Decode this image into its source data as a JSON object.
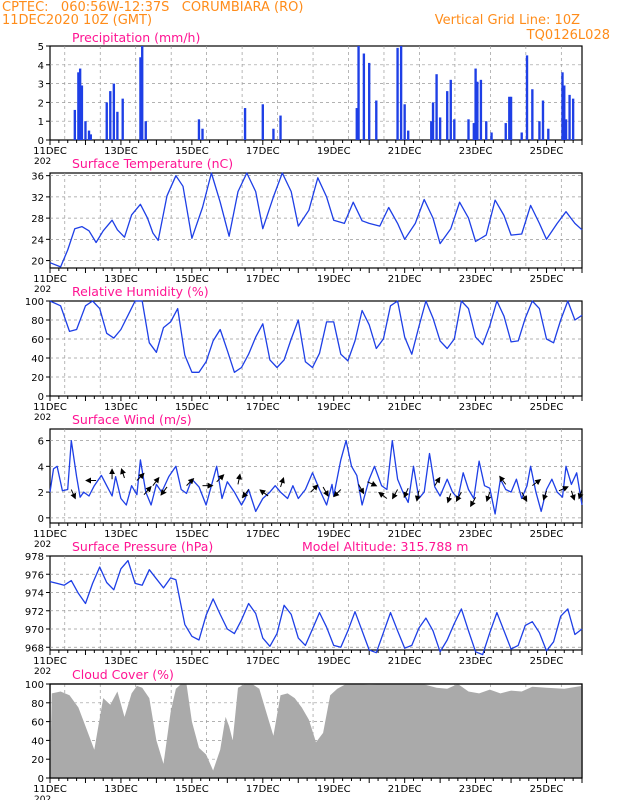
{
  "header": {
    "line1_left": "CPTEC:   060:56W-12:37S   CORUMBIARA (RO)",
    "line2_left": "11DEC2020 10Z (GMT)",
    "line1_right": "Vertical Grid Line: 10Z",
    "line2_right": "TQ0126L028"
  },
  "colors": {
    "header": "#ff8c1a",
    "panel_title": "#ff1493",
    "series": "#1e3fe6",
    "cloud": "#aaaaaa",
    "wind_arrow": "#000000",
    "grid": "#999999"
  },
  "x_axis": {
    "start_day": 11,
    "end_day": 26,
    "labels": [
      "11DEC",
      "13DEC",
      "15DEC",
      "17DEC",
      "19DEC",
      "21DEC",
      "23DEC",
      "25DEC"
    ],
    "label_days": [
      11,
      13,
      15,
      17,
      19,
      21,
      23,
      25
    ],
    "cut_label": "202"
  },
  "chart_data": [
    {
      "id": "precip",
      "type": "bar",
      "title": "Precipitation  (mm/h)",
      "ylim": [
        0,
        5
      ],
      "yticks": [
        0,
        1,
        2,
        3,
        4,
        5
      ],
      "x_unit": "day of December 2020",
      "x": [
        11.7,
        11.8,
        11.85,
        11.9,
        12.0,
        12.1,
        12.15,
        12.6,
        12.7,
        12.8,
        12.9,
        13.05,
        13.55,
        13.6,
        13.7,
        15.2,
        15.3,
        16.5,
        17.0,
        17.3,
        17.5,
        19.65,
        19.7,
        19.85,
        20.0,
        20.2,
        20.8,
        20.9,
        21.0,
        21.1,
        21.75,
        21.8,
        21.9,
        22.0,
        22.2,
        22.3,
        22.4,
        22.8,
        22.95,
        23.0,
        23.05,
        23.15,
        23.3,
        23.45,
        23.85,
        23.95,
        24.0,
        24.3,
        24.45,
        24.6,
        24.8,
        24.9,
        25.05,
        25.45,
        25.5,
        25.55,
        25.65,
        25.75
      ],
      "values": [
        1.6,
        3.6,
        3.8,
        2.9,
        1.0,
        0.5,
        0.3,
        2.0,
        2.6,
        3.0,
        1.5,
        2.2,
        4.4,
        5.0,
        1.0,
        1.1,
        0.6,
        1.7,
        1.9,
        0.6,
        1.3,
        1.7,
        5.0,
        4.6,
        4.1,
        2.1,
        4.9,
        5.0,
        1.9,
        0.5,
        1.0,
        2.0,
        3.5,
        1.2,
        2.6,
        3.2,
        1.1,
        1.1,
        0.9,
        3.8,
        3.1,
        3.2,
        1.0,
        0.4,
        0.9,
        2.3,
        2.3,
        0.4,
        4.5,
        2.7,
        1.0,
        2.1,
        0.6,
        3.6,
        2.9,
        1.1,
        2.4,
        2.2
      ]
    },
    {
      "id": "temp",
      "type": "line",
      "title": "Surface Temperature  (nC)",
      "ylim": [
        18.6,
        36.5
      ],
      "yticks": [
        20,
        24,
        28,
        32,
        36
      ],
      "x_unit": "day of December 2020",
      "x": [
        11.0,
        11.3,
        11.5,
        11.7,
        11.9,
        12.1,
        12.3,
        12.5,
        12.75,
        12.9,
        13.1,
        13.3,
        13.55,
        13.75,
        13.9,
        14.05,
        14.3,
        14.55,
        14.75,
        15.0,
        15.3,
        15.55,
        15.8,
        16.05,
        16.3,
        16.55,
        16.8,
        17.0,
        17.3,
        17.55,
        17.8,
        18.0,
        18.3,
        18.55,
        18.8,
        19.0,
        19.3,
        19.55,
        19.8,
        20.0,
        20.3,
        20.55,
        20.8,
        21.0,
        21.3,
        21.55,
        21.8,
        22.0,
        22.3,
        22.55,
        22.8,
        23.0,
        23.3,
        23.55,
        23.8,
        24.0,
        24.3,
        24.55,
        24.8,
        25.0,
        25.3,
        25.55,
        25.8,
        26.0
      ],
      "values": [
        19.6,
        18.8,
        22.0,
        26.0,
        26.4,
        25.6,
        23.4,
        25.6,
        27.6,
        25.8,
        24.4,
        28.6,
        30.6,
        28.0,
        25.2,
        23.8,
        32.2,
        36.0,
        34.0,
        24.2,
        30.0,
        36.5,
        31.0,
        24.6,
        33.0,
        36.5,
        33.0,
        26.0,
        32.0,
        36.5,
        33.0,
        26.5,
        29.5,
        35.6,
        32.0,
        27.6,
        27.0,
        31.0,
        27.5,
        27.0,
        26.5,
        30.0,
        27.0,
        24.0,
        27.0,
        31.5,
        28.0,
        23.2,
        26.0,
        31.0,
        28.0,
        23.6,
        24.8,
        31.4,
        28.5,
        24.8,
        25.0,
        30.4,
        27.0,
        24.0,
        27.0,
        29.2,
        27.0,
        25.8
      ]
    },
    {
      "id": "rh",
      "type": "line",
      "title": "Relative Humidity  (%)",
      "ylim": [
        0,
        100
      ],
      "yticks": [
        0,
        20,
        40,
        60,
        80,
        100
      ],
      "x_unit": "day of December 2020",
      "x": [
        11.0,
        11.3,
        11.55,
        11.75,
        12.0,
        12.2,
        12.4,
        12.6,
        12.8,
        13.0,
        13.2,
        13.4,
        13.6,
        13.8,
        14.0,
        14.2,
        14.4,
        14.6,
        14.8,
        15.0,
        15.2,
        15.4,
        15.6,
        15.8,
        16.0,
        16.2,
        16.4,
        16.6,
        16.8,
        17.0,
        17.2,
        17.4,
        17.6,
        17.8,
        18.0,
        18.2,
        18.4,
        18.6,
        18.8,
        19.0,
        19.2,
        19.4,
        19.6,
        19.8,
        20.0,
        20.2,
        20.4,
        20.6,
        20.8,
        21.0,
        21.2,
        21.4,
        21.6,
        21.8,
        22.0,
        22.2,
        22.4,
        22.6,
        22.8,
        23.0,
        23.2,
        23.4,
        23.6,
        23.8,
        24.0,
        24.2,
        24.4,
        24.6,
        24.8,
        25.0,
        25.2,
        25.4,
        25.6,
        25.8,
        26.0
      ],
      "values": [
        100,
        95,
        68,
        70,
        95,
        100,
        92,
        66,
        61,
        70,
        85,
        100,
        100,
        56,
        46,
        72,
        78,
        92,
        43,
        25,
        25,
        36,
        58,
        70,
        48,
        25,
        30,
        44,
        62,
        76,
        38,
        30,
        38,
        60,
        80,
        36,
        30,
        45,
        78,
        78,
        44,
        37,
        58,
        90,
        75,
        50,
        60,
        95,
        100,
        62,
        44,
        73,
        100,
        82,
        58,
        50,
        60,
        100,
        92,
        62,
        54,
        74,
        100,
        84,
        57,
        58,
        82,
        100,
        92,
        60,
        56,
        80,
        100,
        80,
        85
      ]
    },
    {
      "id": "wind",
      "type": "line",
      "title": "Surface Wind  (m/s)",
      "ylim": [
        -0.4,
        6.9
      ],
      "yticks": [
        0,
        2,
        4,
        6
      ],
      "x_unit": "day of December 2020",
      "x": [
        11.0,
        11.1,
        11.2,
        11.35,
        11.5,
        11.6,
        11.75,
        11.85,
        11.95,
        12.1,
        12.25,
        12.45,
        12.6,
        12.75,
        12.85,
        13.0,
        13.15,
        13.3,
        13.45,
        13.55,
        13.7,
        13.85,
        14.0,
        14.15,
        14.35,
        14.55,
        14.7,
        14.85,
        15.0,
        15.2,
        15.4,
        15.55,
        15.7,
        15.85,
        16.0,
        16.2,
        16.4,
        16.5,
        16.6,
        16.8,
        17.0,
        17.2,
        17.35,
        17.5,
        17.7,
        17.85,
        18.0,
        18.2,
        18.4,
        18.6,
        18.8,
        18.95,
        19.0,
        19.2,
        19.35,
        19.5,
        19.65,
        19.8,
        20.0,
        20.15,
        20.35,
        20.5,
        20.65,
        20.8,
        20.95,
        21.1,
        21.25,
        21.4,
        21.55,
        21.7,
        21.85,
        22.0,
        22.2,
        22.35,
        22.5,
        22.65,
        22.8,
        22.95,
        23.1,
        23.25,
        23.4,
        23.55,
        23.7,
        23.85,
        24.0,
        24.15,
        24.3,
        24.45,
        24.55,
        24.7,
        24.85,
        25.0,
        25.15,
        25.3,
        25.45,
        25.55,
        25.7,
        25.85,
        26.0
      ],
      "values": [
        2.0,
        3.8,
        4.0,
        2.1,
        2.2,
        6.0,
        3.2,
        1.6,
        2.0,
        1.7,
        2.5,
        3.3,
        2.5,
        1.7,
        3.2,
        1.5,
        1.0,
        2.5,
        1.8,
        4.5,
        2.0,
        1.0,
        2.6,
        2.0,
        3.2,
        4.0,
        2.2,
        1.9,
        3.0,
        2.4,
        1.0,
        2.5,
        4.0,
        1.5,
        2.8,
        2.0,
        1.0,
        1.5,
        2.2,
        0.5,
        1.5,
        2.0,
        2.5,
        2.0,
        1.5,
        2.5,
        1.5,
        2.2,
        3.5,
        2.2,
        1.0,
        2.6,
        1.7,
        4.5,
        6.0,
        4.0,
        3.3,
        1.0,
        3.0,
        4.0,
        2.5,
        2.2,
        6.0,
        3.0,
        2.0,
        1.2,
        4.0,
        1.5,
        2.0,
        5.0,
        2.4,
        1.7,
        3.0,
        2.0,
        1.5,
        3.5,
        2.2,
        1.5,
        4.4,
        2.5,
        2.3,
        0.3,
        3.0,
        2.2,
        2.0,
        3.0,
        1.5,
        2.5,
        4.0,
        2.0,
        0.5,
        2.2,
        3.0,
        2.0,
        1.6,
        4.0,
        2.6,
        3.5,
        1.0
      ]
    },
    {
      "id": "pressure",
      "type": "line",
      "title": "Surface Pressure  (hPa)",
      "title_right": "Model Altitude: 315.788  m",
      "ylim": [
        967.7,
        978
      ],
      "yticks": [
        968,
        970,
        972,
        974,
        976,
        978
      ],
      "x_unit": "day of December 2020",
      "x": [
        11.0,
        11.2,
        11.4,
        11.6,
        11.8,
        12.0,
        12.2,
        12.4,
        12.6,
        12.8,
        13.0,
        13.2,
        13.4,
        13.6,
        13.8,
        14.0,
        14.2,
        14.4,
        14.55,
        14.8,
        15.0,
        15.2,
        15.4,
        15.6,
        15.8,
        16.0,
        16.2,
        16.4,
        16.6,
        16.8,
        17.0,
        17.2,
        17.4,
        17.6,
        17.8,
        18.0,
        18.2,
        18.4,
        18.6,
        18.8,
        19.0,
        19.2,
        19.4,
        19.6,
        19.8,
        20.0,
        20.2,
        20.4,
        20.6,
        20.8,
        21.0,
        21.2,
        21.4,
        21.6,
        21.8,
        22.0,
        22.2,
        22.4,
        22.6,
        22.8,
        23.0,
        23.2,
        23.4,
        23.6,
        23.8,
        24.0,
        24.2,
        24.4,
        24.6,
        24.8,
        25.0,
        25.2,
        25.4,
        25.6,
        25.8,
        26.0
      ],
      "values": [
        975.2,
        975.0,
        974.8,
        975.3,
        973.9,
        972.8,
        975.0,
        976.8,
        975.1,
        974.3,
        976.6,
        977.5,
        975.0,
        974.8,
        976.5,
        975.5,
        974.5,
        975.6,
        975.4,
        970.5,
        969.2,
        968.8,
        971.5,
        973.3,
        971.6,
        970.0,
        969.5,
        971.0,
        972.8,
        971.7,
        969.0,
        968.1,
        969.5,
        972.6,
        971.6,
        969.0,
        968.2,
        970.0,
        971.8,
        970.2,
        968.2,
        968.0,
        969.8,
        971.9,
        969.8,
        967.7,
        967.4,
        969.6,
        971.8,
        969.8,
        967.9,
        968.2,
        970.1,
        971.2,
        969.8,
        967.5,
        968.8,
        970.6,
        972.2,
        969.8,
        967.5,
        967.2,
        969.6,
        971.8,
        969.8,
        967.8,
        968.2,
        970.4,
        970.8,
        969.6,
        967.6,
        968.6,
        971.4,
        972.2,
        969.4,
        970.0
      ]
    },
    {
      "id": "cloud",
      "type": "area",
      "title": "Cloud Cover  (%)",
      "ylim": [
        0,
        100
      ],
      "yticks": [
        0,
        20,
        40,
        60,
        80,
        100
      ],
      "x_unit": "day of December 2020",
      "x": [
        11.0,
        11.05,
        11.3,
        11.55,
        11.8,
        12.0,
        12.25,
        12.5,
        12.7,
        12.9,
        13.1,
        13.3,
        13.45,
        13.6,
        13.8,
        14.0,
        14.2,
        14.4,
        14.55,
        14.7,
        14.85,
        15.0,
        15.2,
        15.4,
        15.6,
        15.8,
        15.95,
        16.05,
        16.15,
        16.3,
        16.5,
        16.7,
        16.9,
        17.1,
        17.3,
        17.5,
        17.7,
        17.9,
        18.1,
        18.3,
        18.5,
        18.7,
        18.9,
        19.1,
        19.35,
        19.6,
        20.0,
        20.5,
        21.0,
        21.5,
        21.9,
        22.2,
        22.5,
        22.8,
        23.1,
        23.4,
        23.7,
        24.0,
        24.3,
        24.6,
        25.0,
        25.5,
        26.0
      ],
      "values": [
        0,
        90,
        92,
        88,
        75,
        55,
        30,
        85,
        78,
        92,
        65,
        90,
        98,
        96,
        85,
        40,
        15,
        70,
        95,
        100,
        100,
        60,
        32,
        25,
        8,
        30,
        65,
        55,
        40,
        96,
        100,
        100,
        95,
        70,
        45,
        88,
        90,
        85,
        75,
        62,
        38,
        48,
        88,
        95,
        100,
        100,
        99,
        100,
        100,
        100,
        96,
        95,
        100,
        92,
        90,
        94,
        90,
        93,
        92,
        97,
        96,
        95,
        98
      ]
    },
    {
      "id": "wind_arrows",
      "type": "scatter",
      "x_unit": "day of December 2020",
      "x": [
        11.6,
        12.3,
        12.75,
        13.1,
        13.45,
        13.65,
        13.9,
        14.3,
        14.85,
        15.3,
        15.7,
        16.3,
        16.6,
        17.15,
        17.5,
        18.35,
        18.7,
        19.2,
        19.7,
        19.95,
        20.5,
        20.8,
        21.1,
        21.4,
        21.85,
        22.3,
        22.6,
        23.0,
        23.4,
        23.85,
        24.3,
        24.6,
        25.0,
        25.35,
        25.7,
        26.0
      ],
      "y": [
        2.2,
        2.9,
        3.0,
        3.1,
        2.9,
        1.8,
        2.5,
        2.4,
        2.5,
        2.5,
        2.8,
        2.6,
        2.2,
        1.7,
        2.4,
        2.0,
        2.4,
        2.2,
        2.6,
        2.8,
        1.5,
        2.2,
        2.3,
        2.1,
        2.5,
        1.9,
        2.0,
        1.6,
        2.0,
        2.6,
        2.0,
        2.5,
        2.1,
        2.1,
        2.1,
        2.2
      ],
      "dx": [
        0.4,
        -1.0,
        0.0,
        -0.3,
        0.7,
        0.7,
        0.6,
        -0.6,
        0.7,
        1.0,
        0.7,
        0.2,
        -0.6,
        -0.8,
        0.3,
        0.7,
        0.5,
        -0.7,
        0.5,
        0.9,
        -0.8,
        -0.5,
        -0.4,
        -0.2,
        0.5,
        -0.3,
        -0.5,
        -0.5,
        -0.3,
        -0.6,
        0.5,
        0.8,
        -0.3,
        0.9,
        0.3,
        -0.3
      ],
      "dy": [
        -0.9,
        0.0,
        1.0,
        0.9,
        0.7,
        0.8,
        0.8,
        -0.8,
        0.7,
        0.0,
        0.7,
        1.0,
        -0.8,
        0.6,
        0.9,
        0.7,
        -0.9,
        -0.7,
        -0.9,
        -0.4,
        0.6,
        -0.9,
        -0.9,
        -1.0,
        0.8,
        -0.9,
        -0.9,
        -0.9,
        -0.9,
        0.8,
        -0.9,
        0.6,
        -0.9,
        0.4,
        -0.9,
        -0.9
      ]
    }
  ]
}
